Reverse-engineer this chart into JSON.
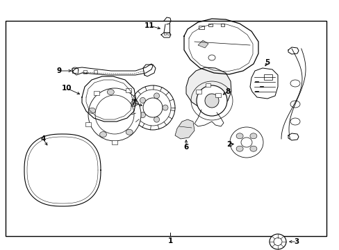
{
  "bg_color": "#ffffff",
  "line_color": "#000000",
  "text_color": "#000000",
  "fig_w": 4.89,
  "fig_h": 3.6,
  "dpi": 100
}
